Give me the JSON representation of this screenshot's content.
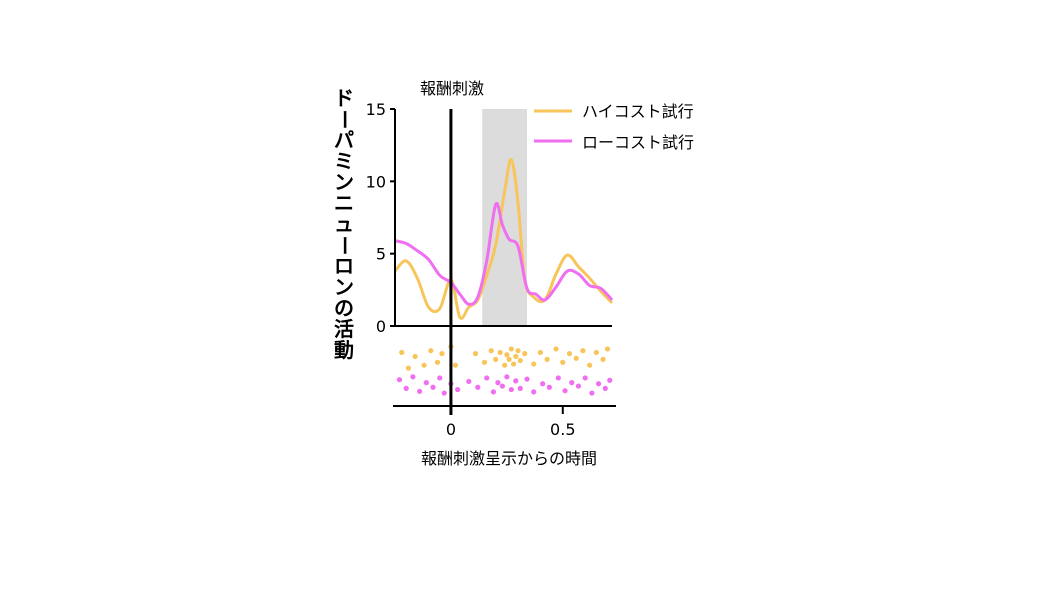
{
  "chart_data": {
    "type": "line",
    "ylabel": "ドーパミンニューロンの活動",
    "xlabel": "報酬刺激呈示からの時間",
    "event_label": "報酬刺激",
    "x_ticks": [
      0,
      0.5
    ],
    "x_tick_labels": [
      "0",
      "0.5"
    ],
    "y_ticks": [
      0,
      5,
      10,
      15
    ],
    "y_tick_labels": [
      "0",
      "5",
      "10",
      "15"
    ],
    "xlim": [
      -0.25,
      0.72
    ],
    "ylim": [
      0,
      15
    ],
    "event_time": 0,
    "shaded_window": [
      0.14,
      0.34
    ],
    "legend_position": "top-right",
    "grid": false,
    "colors": {
      "high": "#f7c55a",
      "low": "#f06ef0",
      "shade": "#dcdcdc",
      "axis": "#000000"
    },
    "series": [
      {
        "name": "ハイコスト試行",
        "color": "#f7c55a",
        "x": [
          -0.25,
          -0.2,
          -0.15,
          -0.1,
          -0.05,
          0.0,
          0.04,
          0.08,
          0.12,
          0.16,
          0.2,
          0.24,
          0.27,
          0.3,
          0.33,
          0.37,
          0.42,
          0.47,
          0.52,
          0.57,
          0.62,
          0.67,
          0.72
        ],
        "values": [
          3.8,
          4.5,
          3.3,
          1.3,
          1.2,
          3.2,
          0.6,
          1.3,
          1.8,
          3.5,
          5.6,
          9.3,
          11.5,
          8.5,
          3.2,
          2.0,
          1.8,
          3.6,
          4.9,
          4.1,
          3.3,
          2.4,
          1.6
        ]
      },
      {
        "name": "ローコスト試行",
        "color": "#f06ef0",
        "x": [
          -0.25,
          -0.2,
          -0.15,
          -0.1,
          -0.05,
          0.0,
          0.04,
          0.08,
          0.12,
          0.16,
          0.2,
          0.23,
          0.26,
          0.3,
          0.34,
          0.38,
          0.42,
          0.47,
          0.52,
          0.57,
          0.62,
          0.67,
          0.72
        ],
        "values": [
          5.9,
          5.7,
          5.2,
          4.6,
          3.5,
          3.0,
          2.2,
          1.5,
          2.0,
          4.5,
          8.4,
          7.0,
          6.0,
          5.5,
          2.6,
          2.2,
          1.8,
          2.7,
          3.8,
          3.6,
          2.8,
          2.6,
          1.8
        ]
      }
    ],
    "raster_high": [
      [
        -0.22,
        0.82
      ],
      [
        -0.19,
        0.55
      ],
      [
        -0.16,
        0.75
      ],
      [
        -0.12,
        0.6
      ],
      [
        -0.09,
        0.85
      ],
      [
        -0.06,
        0.65
      ],
      [
        -0.04,
        0.8
      ],
      [
        0.0,
        0.92
      ],
      [
        0.02,
        0.6
      ],
      [
        0.11,
        0.8
      ],
      [
        0.15,
        0.65
      ],
      [
        0.18,
        0.85
      ],
      [
        0.2,
        0.7
      ],
      [
        0.22,
        0.82
      ],
      [
        0.24,
        0.6
      ],
      [
        0.25,
        0.78
      ],
      [
        0.26,
        0.7
      ],
      [
        0.27,
        0.88
      ],
      [
        0.28,
        0.62
      ],
      [
        0.29,
        0.75
      ],
      [
        0.3,
        0.85
      ],
      [
        0.31,
        0.68
      ],
      [
        0.33,
        0.8
      ],
      [
        0.37,
        0.62
      ],
      [
        0.4,
        0.82
      ],
      [
        0.43,
        0.7
      ],
      [
        0.47,
        0.88
      ],
      [
        0.5,
        0.65
      ],
      [
        0.53,
        0.8
      ],
      [
        0.56,
        0.72
      ],
      [
        0.59,
        0.85
      ],
      [
        0.62,
        0.6
      ],
      [
        0.65,
        0.82
      ],
      [
        0.68,
        0.7
      ],
      [
        0.7,
        0.88
      ]
    ],
    "raster_low": [
      [
        -0.23,
        0.35
      ],
      [
        -0.2,
        0.2
      ],
      [
        -0.17,
        0.4
      ],
      [
        -0.14,
        0.15
      ],
      [
        -0.11,
        0.3
      ],
      [
        -0.08,
        0.22
      ],
      [
        -0.05,
        0.38
      ],
      [
        -0.03,
        0.12
      ],
      [
        0.0,
        0.28
      ],
      [
        0.03,
        0.18
      ],
      [
        0.08,
        0.32
      ],
      [
        0.12,
        0.22
      ],
      [
        0.16,
        0.38
      ],
      [
        0.19,
        0.14
      ],
      [
        0.21,
        0.3
      ],
      [
        0.23,
        0.24
      ],
      [
        0.25,
        0.4
      ],
      [
        0.27,
        0.18
      ],
      [
        0.29,
        0.33
      ],
      [
        0.31,
        0.2
      ],
      [
        0.34,
        0.36
      ],
      [
        0.37,
        0.14
      ],
      [
        0.41,
        0.28
      ],
      [
        0.44,
        0.22
      ],
      [
        0.48,
        0.38
      ],
      [
        0.51,
        0.16
      ],
      [
        0.54,
        0.3
      ],
      [
        0.57,
        0.24
      ],
      [
        0.6,
        0.38
      ],
      [
        0.63,
        0.12
      ],
      [
        0.66,
        0.28
      ],
      [
        0.69,
        0.2
      ],
      [
        0.71,
        0.34
      ]
    ]
  }
}
